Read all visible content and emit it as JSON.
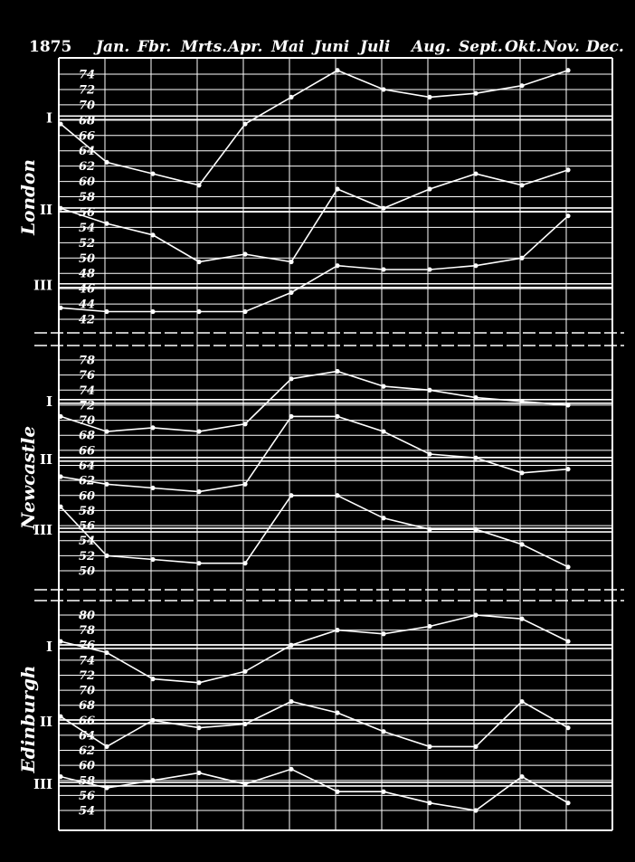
{
  "chart_data": {
    "type": "line",
    "year": "1875",
    "months": [
      "Jan.",
      "Fbr.",
      "Mrts.",
      "Apr.",
      "Mai",
      "Juni",
      "Juli",
      "Aug.",
      "Sept.",
      "Okt.",
      "Nov.",
      "Dec."
    ],
    "colors": {
      "background": "#000000",
      "ink": "#ffffff"
    },
    "panels": [
      {
        "city": "London",
        "ticks": [
          74,
          72,
          70,
          68,
          66,
          64,
          62,
          60,
          58,
          56,
          54,
          52,
          50,
          48,
          46,
          44,
          42
        ],
        "ylim": [
          41,
          76
        ],
        "levels": [
          {
            "label": "I",
            "value": 68.3
          },
          {
            "label": "II",
            "value": 56.3
          },
          {
            "label": "III",
            "value": 46.4
          }
        ],
        "series": [
          {
            "values": [
              67.5,
              62.5,
              61,
              59.5,
              67.5,
              71,
              74.5,
              72,
              71,
              71.5,
              72.5,
              74.5
            ]
          },
          {
            "values": [
              56.5,
              54.5,
              53,
              49.5,
              50.5,
              49.5,
              59,
              56.5,
              59,
              61,
              59.5,
              61.5
            ]
          },
          {
            "values": [
              43.5,
              43,
              43,
              43,
              43,
              45.5,
              49,
              48.5,
              48.5,
              49,
              50,
              55.5
            ]
          }
        ]
      },
      {
        "city": "Newcastle",
        "ticks": [
          78,
          76,
          74,
          72,
          70,
          68,
          66,
          64,
          62,
          60,
          58,
          56,
          54,
          52,
          50
        ],
        "ylim": [
          49,
          79
        ],
        "levels": [
          {
            "label": "I",
            "value": 72.5
          },
          {
            "label": "II",
            "value": 64.8
          },
          {
            "label": "III",
            "value": 55.4
          }
        ],
        "series": [
          {
            "values": [
              70.5,
              68.5,
              69,
              68.5,
              69.5,
              75.5,
              76.5,
              74.5,
              74,
              73,
              72.5,
              72
            ]
          },
          {
            "values": [
              62.5,
              61.5,
              61,
              60.5,
              61.5,
              70.5,
              70.5,
              68.5,
              65.5,
              65,
              63,
              63.5
            ]
          },
          {
            "values": [
              58.5,
              52,
              51.5,
              51,
              51,
              60,
              60,
              57,
              55.5,
              55.5,
              53.5,
              50.5
            ]
          }
        ]
      },
      {
        "city": "Edinburgh",
        "ticks": [
          80,
          78,
          76,
          74,
          72,
          70,
          68,
          66,
          64,
          62,
          60,
          58,
          56,
          54
        ],
        "ylim": [
          53,
          81
        ],
        "levels": [
          {
            "label": "I",
            "value": 75.8
          },
          {
            "label": "II",
            "value": 65.8
          },
          {
            "label": "III",
            "value": 57.5
          }
        ],
        "series": [
          {
            "values": [
              76.5,
              75,
              71.5,
              71,
              72.5,
              76,
              78,
              77.5,
              78.5,
              80,
              79.5,
              76.5
            ]
          },
          {
            "values": [
              66.5,
              62.5,
              66,
              65,
              65.5,
              68.5,
              67,
              64.5,
              62.5,
              62.5,
              68.5,
              65
            ]
          },
          {
            "values": [
              58.5,
              57,
              58,
              59,
              57.5,
              59.5,
              56.5,
              56.5,
              55,
              54,
              58.5,
              55
            ]
          }
        ]
      }
    ]
  }
}
